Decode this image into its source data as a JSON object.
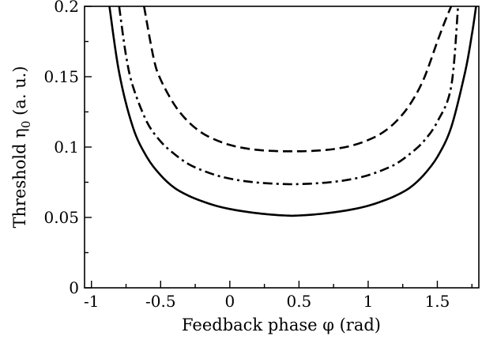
{
  "chart_data": {
    "type": "line",
    "xlabel": "Feedback phase φ (rad)",
    "ylabel": "Threshold η",
    "ylabel_sub": "0",
    "ylabel_suffix": " (a. u.)",
    "xlim": [
      -1.05,
      1.8
    ],
    "ylim": [
      0,
      0.2
    ],
    "x_ticks": [
      -1,
      -0.5,
      0,
      0.5,
      1,
      1.5
    ],
    "x_tick_labels": [
      "-1",
      "-0.5",
      "0",
      "0.5",
      "1",
      "1.5"
    ],
    "y_ticks": [
      0,
      0.05,
      0.1,
      0.15,
      0.2
    ],
    "y_tick_labels": [
      "0",
      "0.05",
      "0.1",
      "0.15",
      "0.2"
    ],
    "grid": false,
    "series": [
      {
        "style": "solid",
        "x": [
          -0.87,
          -0.8,
          -0.7,
          -0.6,
          -0.5,
          -0.4,
          -0.3,
          -0.2,
          -0.1,
          0,
          0.1,
          0.2,
          0.3,
          0.4,
          0.45,
          0.5,
          0.6,
          0.7,
          0.8,
          0.9,
          1.0,
          1.1,
          1.2,
          1.3,
          1.4,
          1.5,
          1.6,
          1.7,
          1.75,
          1.78
        ],
        "y": [
          0.2,
          0.153,
          0.114,
          0.093,
          0.08,
          0.071,
          0.0655,
          0.0615,
          0.0583,
          0.056,
          0.0543,
          0.053,
          0.052,
          0.0514,
          0.0512,
          0.0514,
          0.052,
          0.053,
          0.0543,
          0.056,
          0.0583,
          0.0615,
          0.0655,
          0.071,
          0.08,
          0.093,
          0.114,
          0.153,
          0.18,
          0.2
        ]
      },
      {
        "style": "dash-dot",
        "x": [
          -0.8,
          -0.75,
          -0.7,
          -0.6,
          -0.5,
          -0.4,
          -0.3,
          -0.2,
          -0.1,
          0,
          0.1,
          0.2,
          0.3,
          0.4,
          0.45,
          0.5,
          0.6,
          0.7,
          0.8,
          0.9,
          1.0,
          1.1,
          1.2,
          1.3,
          1.4,
          1.5,
          1.6,
          1.65
        ],
        "y": [
          0.2,
          0.165,
          0.143,
          0.118,
          0.104,
          0.095,
          0.088,
          0.0835,
          0.08,
          0.0776,
          0.0759,
          0.0748,
          0.0741,
          0.0737,
          0.0736,
          0.0737,
          0.0741,
          0.0748,
          0.0759,
          0.0776,
          0.08,
          0.0835,
          0.088,
          0.095,
          0.104,
          0.118,
          0.143,
          0.2
        ]
      },
      {
        "style": "dashed",
        "x": [
          -0.62,
          -0.55,
          -0.5,
          -0.4,
          -0.3,
          -0.2,
          -0.1,
          0,
          0.1,
          0.2,
          0.3,
          0.4,
          0.45,
          0.5,
          0.6,
          0.7,
          0.8,
          0.9,
          1.0,
          1.1,
          1.2,
          1.3,
          1.4,
          1.5,
          1.55,
          1.6
        ],
        "y": [
          0.2,
          0.163,
          0.148,
          0.13,
          0.118,
          0.11,
          0.105,
          0.1015,
          0.0993,
          0.098,
          0.0973,
          0.097,
          0.097,
          0.097,
          0.0973,
          0.098,
          0.0993,
          0.1015,
          0.105,
          0.11,
          0.118,
          0.13,
          0.148,
          0.175,
          0.188,
          0.2
        ]
      }
    ]
  }
}
